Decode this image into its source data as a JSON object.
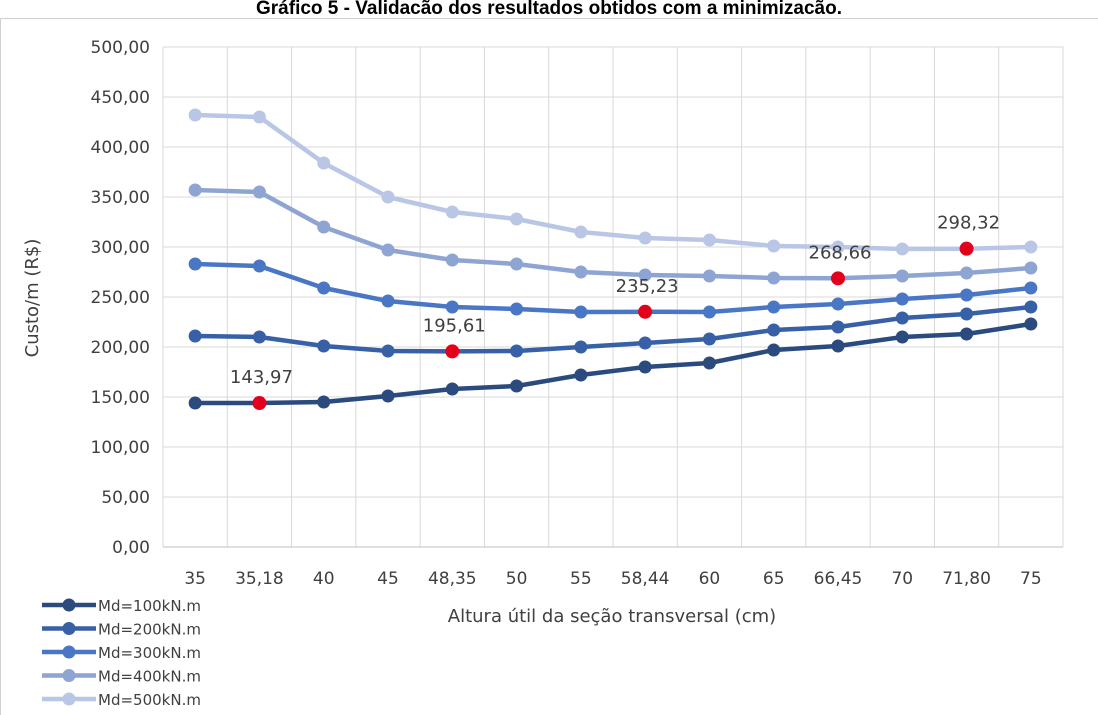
{
  "chart_data": {
    "type": "line",
    "title": "Gráfico 5 - Validação dos resultados obtidos com a minimização.",
    "xlabel": "Altura útil da seção transversal (cm)",
    "ylabel": "Custo/m (R$)",
    "categories": [
      "35",
      "35,18",
      "40",
      "45",
      "48,35",
      "50",
      "55",
      "58,44",
      "60",
      "65",
      "66,45",
      "70",
      "71,80",
      "75"
    ],
    "ylim": [
      0,
      500
    ],
    "yticks": [
      "0,00",
      "50,00",
      "100,00",
      "150,00",
      "200,00",
      "250,00",
      "300,00",
      "350,00",
      "400,00",
      "450,00",
      "500,00"
    ],
    "grid": true,
    "legend_position": "bottom-left",
    "series": [
      {
        "name": "Md=100kN.m",
        "color": "#2b4a7e",
        "values": [
          144,
          143.97,
          145,
          151,
          158,
          161,
          172,
          180,
          184,
          197,
          201,
          210,
          213,
          223
        ]
      },
      {
        "name": "Md=200kN.m",
        "color": "#3860a6",
        "values": [
          211,
          210,
          201,
          196,
          195.61,
          196,
          200,
          204,
          208,
          217,
          220,
          229,
          233,
          240
        ]
      },
      {
        "name": "Md=300kN.m",
        "color": "#4a76c6",
        "values": [
          283,
          281,
          259,
          246,
          240,
          238,
          235,
          235.23,
          235,
          240,
          243,
          248,
          252,
          259
        ]
      },
      {
        "name": "Md=400kN.m",
        "color": "#8ea4d2",
        "values": [
          357,
          355,
          320,
          297,
          287,
          283,
          275,
          272,
          271,
          269,
          268.66,
          271,
          274,
          279
        ]
      },
      {
        "name": "Md=500kN.m",
        "color": "#b9c6e5",
        "values": [
          432,
          430,
          384,
          350,
          335,
          328,
          315,
          309,
          307,
          301,
          300,
          298,
          298.32,
          300
        ]
      }
    ],
    "highlights": [
      {
        "series": 0,
        "index": 1,
        "label": "143,97"
      },
      {
        "series": 1,
        "index": 4,
        "label": "195,61"
      },
      {
        "series": 2,
        "index": 7,
        "label": "235,23"
      },
      {
        "series": 3,
        "index": 10,
        "label": "268,66"
      },
      {
        "series": 4,
        "index": 12,
        "label": "298,32"
      }
    ],
    "highlight_color": "#e3001b"
  }
}
